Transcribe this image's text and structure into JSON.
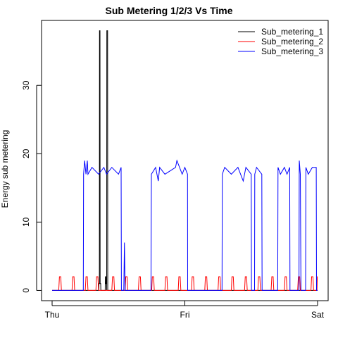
{
  "chart_data": {
    "type": "line",
    "title": "Sub Metering 1/2/3 Vs Time",
    "xlabel": "",
    "ylabel": "Energy sub metering",
    "x_ticks": [
      "Thu",
      "Fri",
      "Sat"
    ],
    "x_tick_positions": [
      0,
      1,
      2
    ],
    "x_range": [
      0,
      2
    ],
    "ylim": [
      -1.5,
      39.5
    ],
    "y_ticks": [
      0,
      10,
      20,
      30
    ],
    "grid": false,
    "legend_position": "top-right",
    "legend_box": false,
    "series": [
      {
        "name": "Sub_metering_1",
        "color": "#000000",
        "points": [
          [
            0,
            0
          ],
          [
            0.352,
            0
          ],
          [
            0.353,
            1
          ],
          [
            0.356,
            1
          ],
          [
            0.357,
            38
          ],
          [
            0.361,
            38
          ],
          [
            0.362,
            1
          ],
          [
            0.366,
            1
          ],
          [
            0.367,
            0
          ],
          [
            0.4,
            0
          ],
          [
            0.401,
            2
          ],
          [
            0.405,
            2
          ],
          [
            0.406,
            1
          ],
          [
            0.41,
            1
          ],
          [
            0.411,
            0
          ],
          [
            0.412,
            38
          ],
          [
            0.418,
            38
          ],
          [
            0.419,
            0
          ],
          [
            2,
            0
          ]
        ]
      },
      {
        "name": "Sub_metering_2",
        "color": "#ff0000",
        "points": [
          [
            0,
            0
          ],
          [
            0.05,
            0
          ],
          [
            0.055,
            2
          ],
          [
            0.065,
            2
          ],
          [
            0.07,
            0
          ],
          [
            0.15,
            0
          ],
          [
            0.155,
            2
          ],
          [
            0.165,
            2
          ],
          [
            0.17,
            0
          ],
          [
            0.25,
            0
          ],
          [
            0.255,
            2
          ],
          [
            0.265,
            2
          ],
          [
            0.27,
            0
          ],
          [
            0.33,
            0
          ],
          [
            0.335,
            2
          ],
          [
            0.345,
            2
          ],
          [
            0.35,
            0
          ],
          [
            0.45,
            0
          ],
          [
            0.455,
            2
          ],
          [
            0.465,
            2
          ],
          [
            0.47,
            0
          ],
          [
            0.55,
            0
          ],
          [
            0.555,
            2
          ],
          [
            0.565,
            2
          ],
          [
            0.57,
            0
          ],
          [
            0.65,
            0
          ],
          [
            0.655,
            2
          ],
          [
            0.665,
            2
          ],
          [
            0.67,
            0
          ],
          [
            0.75,
            0
          ],
          [
            0.755,
            2
          ],
          [
            0.765,
            2
          ],
          [
            0.77,
            0
          ],
          [
            0.85,
            0
          ],
          [
            0.855,
            2
          ],
          [
            0.865,
            2
          ],
          [
            0.87,
            0
          ],
          [
            0.95,
            0
          ],
          [
            0.955,
            2
          ],
          [
            0.965,
            2
          ],
          [
            0.97,
            0
          ],
          [
            1.05,
            0
          ],
          [
            1.055,
            2
          ],
          [
            1.065,
            2
          ],
          [
            1.07,
            0
          ],
          [
            1.15,
            0
          ],
          [
            1.155,
            2
          ],
          [
            1.165,
            2
          ],
          [
            1.17,
            0
          ],
          [
            1.25,
            0
          ],
          [
            1.255,
            2
          ],
          [
            1.265,
            2
          ],
          [
            1.27,
            0
          ],
          [
            1.35,
            0
          ],
          [
            1.355,
            2
          ],
          [
            1.365,
            2
          ],
          [
            1.37,
            0
          ],
          [
            1.45,
            0
          ],
          [
            1.455,
            2
          ],
          [
            1.465,
            2
          ],
          [
            1.47,
            0
          ],
          [
            1.55,
            0
          ],
          [
            1.555,
            2
          ],
          [
            1.565,
            2
          ],
          [
            1.57,
            0
          ],
          [
            1.65,
            0
          ],
          [
            1.655,
            2
          ],
          [
            1.665,
            2
          ],
          [
            1.67,
            0
          ],
          [
            1.75,
            0
          ],
          [
            1.755,
            2
          ],
          [
            1.765,
            2
          ],
          [
            1.77,
            0
          ],
          [
            1.85,
            0
          ],
          [
            1.855,
            2
          ],
          [
            1.865,
            2
          ],
          [
            1.87,
            0
          ],
          [
            1.95,
            0
          ],
          [
            1.955,
            2
          ],
          [
            1.965,
            2
          ],
          [
            1.97,
            0
          ],
          [
            1.995,
            0
          ],
          [
            1.998,
            2
          ],
          [
            2,
            2
          ]
        ]
      },
      {
        "name": "Sub_metering_3",
        "color": "#0000ff",
        "points": [
          [
            0,
            0
          ],
          [
            0.235,
            0
          ],
          [
            0.237,
            17
          ],
          [
            0.245,
            19
          ],
          [
            0.255,
            17
          ],
          [
            0.265,
            19
          ],
          [
            0.27,
            17
          ],
          [
            0.3,
            18
          ],
          [
            0.35,
            17
          ],
          [
            0.39,
            18
          ],
          [
            0.41,
            17
          ],
          [
            0.45,
            18
          ],
          [
            0.5,
            17
          ],
          [
            0.52,
            18
          ],
          [
            0.522,
            0
          ],
          [
            0.54,
            0
          ],
          [
            0.545,
            7
          ],
          [
            0.55,
            0
          ],
          [
            0.745,
            0
          ],
          [
            0.748,
            17
          ],
          [
            0.78,
            18
          ],
          [
            0.8,
            16
          ],
          [
            0.81,
            18
          ],
          [
            0.85,
            17
          ],
          [
            0.93,
            18
          ],
          [
            0.94,
            19
          ],
          [
            0.96,
            18
          ],
          [
            0.98,
            17
          ],
          [
            1.0,
            18
          ],
          [
            1.02,
            17
          ],
          [
            1.021,
            0
          ],
          [
            1.28,
            0
          ],
          [
            1.282,
            17
          ],
          [
            1.3,
            18
          ],
          [
            1.35,
            17
          ],
          [
            1.4,
            18
          ],
          [
            1.44,
            16
          ],
          [
            1.46,
            18
          ],
          [
            1.5,
            17
          ],
          [
            1.502,
            0
          ],
          [
            1.525,
            0
          ],
          [
            1.527,
            17
          ],
          [
            1.54,
            18
          ],
          [
            1.58,
            17
          ],
          [
            1.582,
            0
          ],
          [
            1.7,
            0
          ],
          [
            1.702,
            18
          ],
          [
            1.72,
            17
          ],
          [
            1.75,
            18
          ],
          [
            1.77,
            17
          ],
          [
            1.79,
            18
          ],
          [
            1.792,
            0
          ],
          [
            1.86,
            0
          ],
          [
            1.862,
            19
          ],
          [
            1.87,
            17
          ],
          [
            1.875,
            0
          ],
          [
            1.91,
            0
          ],
          [
            1.912,
            18
          ],
          [
            1.93,
            17
          ],
          [
            1.96,
            18
          ],
          [
            1.99,
            18
          ],
          [
            1.992,
            0
          ],
          [
            2,
            0
          ]
        ]
      }
    ]
  }
}
